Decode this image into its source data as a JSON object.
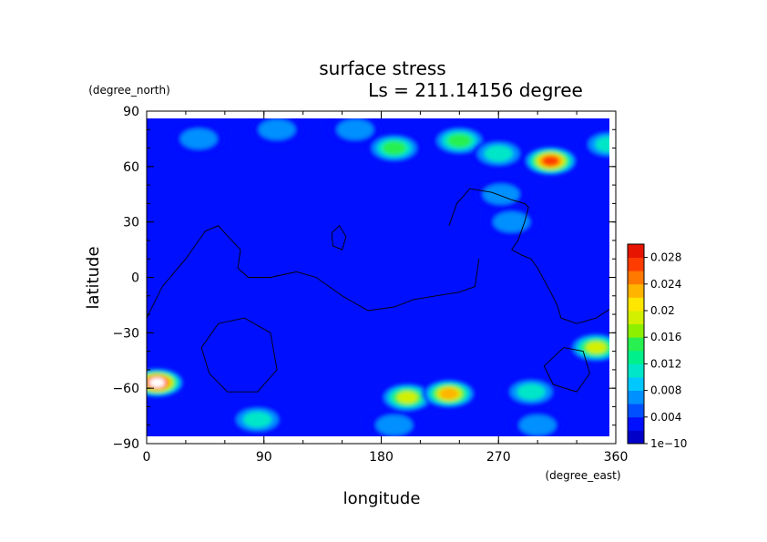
{
  "chart_data": {
    "type": "heatmap",
    "title": "surface stress",
    "subtitle": "Ls = 211.14156 degree",
    "xlabel": "longitude",
    "ylabel": "latitude",
    "xunit": "(degree_east)",
    "yunit": "(degree_north)",
    "xlim": [
      0,
      360
    ],
    "ylim": [
      -90,
      90
    ],
    "x_ticks": [
      "0",
      "90",
      "180",
      "270",
      "360"
    ],
    "y_ticks": [
      "90",
      "60",
      "30",
      "0",
      "−30",
      "−60",
      "−90"
    ],
    "colorbar": {
      "min": 1e-10,
      "max": 0.03,
      "tick_labels": [
        "1e−10",
        "0.004",
        "0.008",
        "0.012",
        "0.016",
        "0.02",
        "0.024",
        "0.028"
      ],
      "colors": [
        "#0000c8",
        "#0010ff",
        "#0050ff",
        "#0090ff",
        "#00c8ff",
        "#00e6c8",
        "#00f08c",
        "#28f050",
        "#8cf000",
        "#d2f000",
        "#ffe600",
        "#ffb400",
        "#ff7800",
        "#ff3c00",
        "#e61400"
      ]
    },
    "grid": false,
    "legend": "colorbar right",
    "features": [
      {
        "name": "west-continent-outline",
        "points": [
          [
            0,
            -22
          ],
          [
            12,
            -5
          ],
          [
            30,
            10
          ],
          [
            45,
            25
          ],
          [
            55,
            28
          ],
          [
            60,
            24
          ],
          [
            72,
            15
          ],
          [
            70,
            5
          ],
          [
            78,
            0
          ],
          [
            95,
            0
          ],
          [
            115,
            3
          ],
          [
            130,
            0
          ],
          [
            150,
            -10
          ],
          [
            170,
            -18
          ],
          [
            190,
            -16
          ],
          [
            205,
            -12
          ],
          [
            222,
            -10
          ],
          [
            240,
            -8
          ],
          [
            252,
            -5
          ],
          [
            255,
            10
          ]
        ]
      },
      {
        "name": "north-polar-outline",
        "points": [
          [
            232,
            28
          ],
          [
            238,
            40
          ],
          [
            248,
            48
          ],
          [
            265,
            46
          ],
          [
            280,
            42
          ],
          [
            290,
            40
          ],
          [
            293,
            38
          ],
          [
            290,
            30
          ],
          [
            285,
            20
          ],
          [
            280,
            15
          ]
        ]
      },
      {
        "name": "east-coast-outline",
        "points": [
          [
            280,
            15
          ],
          [
            288,
            12
          ],
          [
            295,
            10
          ],
          [
            300,
            5
          ],
          [
            310,
            -8
          ],
          [
            315,
            -15
          ],
          [
            318,
            -22
          ],
          [
            330,
            -25
          ],
          [
            345,
            -22
          ],
          [
            360,
            -15
          ]
        ]
      },
      {
        "name": "small-island-outline",
        "points": [
          [
            142,
            24
          ],
          [
            148,
            28
          ],
          [
            153,
            22
          ],
          [
            150,
            15
          ],
          [
            143,
            17
          ],
          [
            142,
            24
          ]
        ]
      },
      {
        "name": "south-crater-west-outline",
        "points": [
          [
            55,
            -25
          ],
          [
            75,
            -22
          ],
          [
            95,
            -30
          ],
          [
            100,
            -50
          ],
          [
            85,
            -62
          ],
          [
            62,
            -62
          ],
          [
            48,
            -52
          ],
          [
            42,
            -38
          ],
          [
            55,
            -25
          ]
        ]
      },
      {
        "name": "south-crater-east-outline",
        "points": [
          [
            320,
            -38
          ],
          [
            335,
            -40
          ],
          [
            340,
            -52
          ],
          [
            330,
            -62
          ],
          [
            312,
            -58
          ],
          [
            305,
            -48
          ],
          [
            320,
            -38
          ]
        ]
      }
    ],
    "hotspots": [
      {
        "lon": 8,
        "lat": -57,
        "value": 0.031
      },
      {
        "lon": 310,
        "lat": 63,
        "value": 0.03
      },
      {
        "lon": 200,
        "lat": -65,
        "value": 0.024
      },
      {
        "lon": 232,
        "lat": -63,
        "value": 0.025
      },
      {
        "lon": 190,
        "lat": 70,
        "value": 0.02
      },
      {
        "lon": 240,
        "lat": 74,
        "value": 0.02
      },
      {
        "lon": 345,
        "lat": -38,
        "value": 0.021
      },
      {
        "lon": 270,
        "lat": 67,
        "value": 0.015
      },
      {
        "lon": 355,
        "lat": 72,
        "value": 0.013
      },
      {
        "lon": 160,
        "lat": 80,
        "value": 0.012
      },
      {
        "lon": 100,
        "lat": 80,
        "value": 0.012
      },
      {
        "lon": 40,
        "lat": 75,
        "value": 0.011
      },
      {
        "lon": 85,
        "lat": -77,
        "value": 0.014
      },
      {
        "lon": 190,
        "lat": -80,
        "value": 0.012
      },
      {
        "lon": 300,
        "lat": -80,
        "value": 0.012
      },
      {
        "lon": 295,
        "lat": -62,
        "value": 0.014
      },
      {
        "lon": 272,
        "lat": 45,
        "value": 0.01
      },
      {
        "lon": 280,
        "lat": 30,
        "value": 0.012
      }
    ]
  }
}
